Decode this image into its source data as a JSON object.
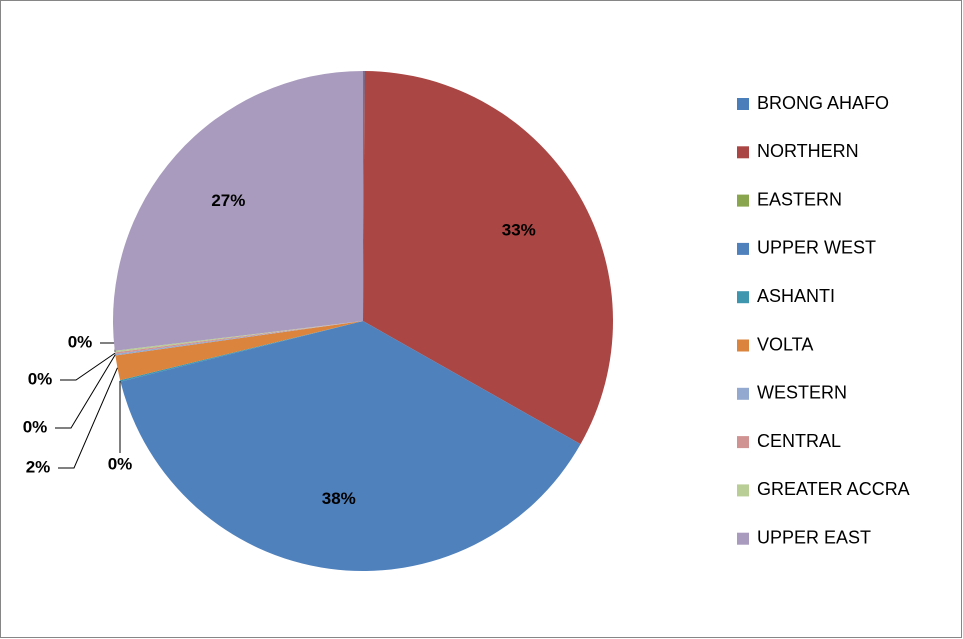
{
  "chart_data": {
    "type": "pie",
    "categories": [
      "BRONG AHAFO",
      "NORTHERN",
      "EASTERN",
      "UPPER WEST",
      "ASHANTI",
      "VOLTA",
      "WESTERN",
      "CENTRAL",
      "GREATER ACCRA",
      "UPPER EAST"
    ],
    "values": [
      0.1,
      33.1,
      0,
      37.9,
      0.1,
      1.6,
      0.1,
      0.1,
      0.1,
      26.9
    ],
    "value_labels": [
      null,
      "33%",
      null,
      "38%",
      "0%",
      "2%",
      "0%",
      "0%",
      "0%",
      "27%"
    ],
    "colors": [
      "#4a7ebb",
      "#aa4643",
      "#89a54e",
      "#4f81bd",
      "#3d96ae",
      "#db843d",
      "#93a9cf",
      "#d19392",
      "#b9cd96",
      "#a99bbd"
    ],
    "legend": "right"
  }
}
